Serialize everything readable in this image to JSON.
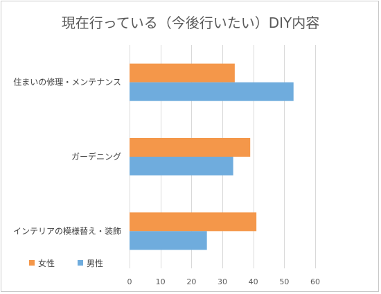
{
  "chart_data": {
    "type": "bar",
    "orientation": "horizontal",
    "title": "現在行っている（今後行いたい）DIY内容",
    "categories": [
      "住まいの修理・メンテナンス",
      "ガーデニング",
      "インテリアの模様替え・装飾"
    ],
    "series": [
      {
        "name": "女性",
        "color": "#F4974A",
        "values": [
          34,
          39,
          41
        ]
      },
      {
        "name": "男性",
        "color": "#6FACDD",
        "values": [
          53,
          33.5,
          25
        ]
      }
    ],
    "xlim": [
      0,
      60
    ],
    "xticks": [
      "0",
      "10",
      "20",
      "30",
      "40",
      "50",
      "60"
    ],
    "grid": true,
    "legend_position": "bottom-left"
  }
}
